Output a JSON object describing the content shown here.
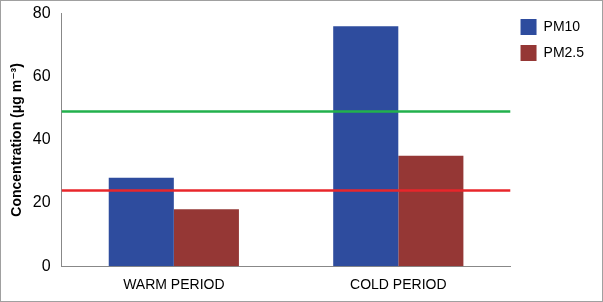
{
  "chart_data": {
    "type": "bar",
    "y_label": "Concentration (μg m⁻³)",
    "categories": [
      "WARM PERIOD",
      "COLD PERIOD"
    ],
    "series": [
      {
        "name": "PM10",
        "color": "#2e4c9e",
        "values": [
          28,
          76
        ]
      },
      {
        "name": "PM2.5",
        "color": "#953735",
        "values": [
          18,
          35
        ]
      }
    ],
    "ylim": [
      0,
      80
    ],
    "yticks": [
      0,
      20,
      40,
      60,
      80
    ],
    "grid": false,
    "legend": "top-right",
    "reference_lines": [
      {
        "value": 49,
        "color": "#22b14c"
      },
      {
        "value": 24,
        "color": "#e8262b"
      }
    ]
  }
}
